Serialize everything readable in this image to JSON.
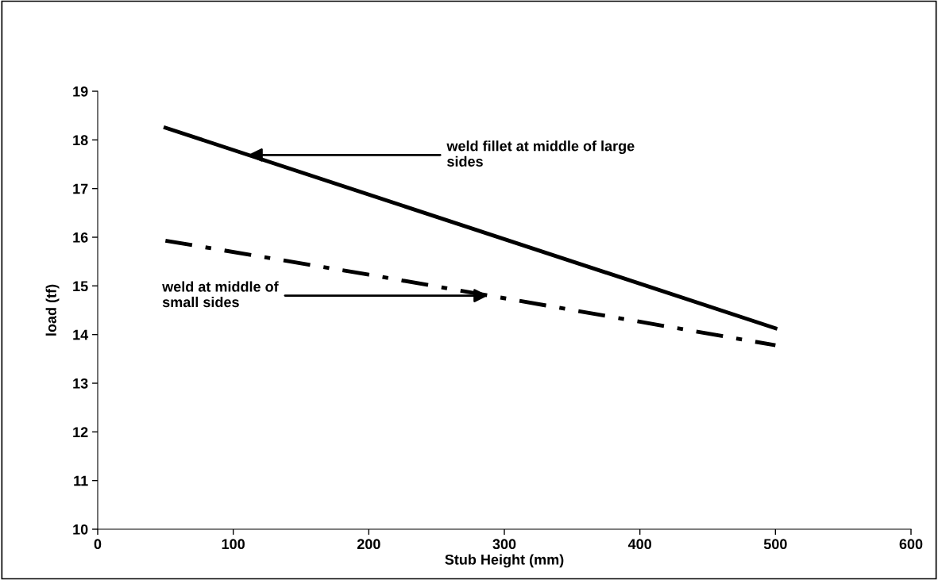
{
  "chart_data": {
    "type": "line",
    "xlabel": "Stub Height (mm)",
    "ylabel": "load (tf)",
    "xlim": [
      0,
      600
    ],
    "xticks": [
      0,
      100,
      200,
      300,
      400,
      500,
      600
    ],
    "ylim": [
      10,
      19
    ],
    "yticks": [
      10,
      11,
      12,
      13,
      14,
      15,
      16,
      17,
      18,
      19
    ],
    "grid": false,
    "legend": false,
    "marker": "none",
    "series": [
      {
        "color": "#000000",
        "line_style": "solid",
        "x": [
          50,
          500
        ],
        "values": [
          18.25,
          14.13
        ]
      },
      {
        "color": "#000000",
        "line_style": "dashdot",
        "x": [
          50,
          200,
          500
        ],
        "values": [
          15.93,
          15.23,
          13.78
        ]
      }
    ],
    "annotations": [
      {
        "text": "weld fillet at middle of large\nsides",
        "x": 111,
        "y": 17.69
      },
      {
        "text": "weld at middle of\nsmall sides",
        "x": 288,
        "y": 14.8
      }
    ]
  }
}
